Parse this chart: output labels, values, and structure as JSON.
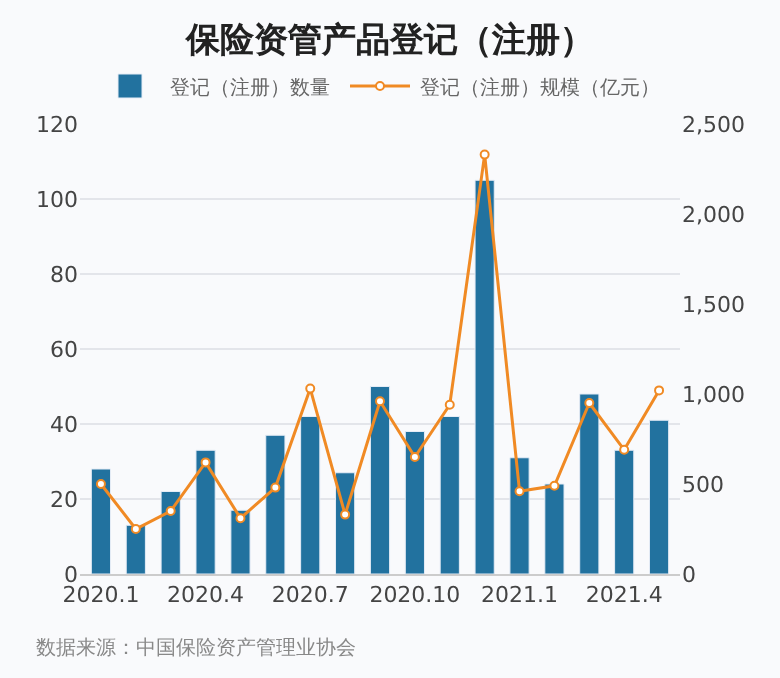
{
  "chart_data": {
    "type": "bar",
    "title": "保险资管产品登记（注册）",
    "categories": [
      "2020.1",
      null,
      null,
      "2020.4",
      null,
      null,
      "2020.7",
      null,
      null,
      "2020.10",
      null,
      null,
      "2021.1",
      null,
      null,
      "2021.4",
      null
    ],
    "series": [
      {
        "name": "登记（注册）数量",
        "color": "#22729f",
        "values": [
          28,
          13,
          22,
          33,
          17,
          37,
          42,
          27,
          50,
          38,
          42,
          105,
          31,
          24,
          48,
          33,
          41
        ]
      },
      {
        "name": "登记（注册）规模（亿元）",
        "color": "#f08a24",
        "type": "line",
        "axis": "y2",
        "marker": "circle",
        "values": [
          500,
          250,
          350,
          620,
          310,
          480,
          1030,
          330,
          960,
          650,
          940,
          2330,
          460,
          490,
          950,
          690,
          1020
        ]
      }
    ],
    "ylim": [
      0,
      120
    ],
    "yticks": [
      0,
      20,
      40,
      60,
      80,
      100,
      120
    ],
    "y2lim": [
      0,
      2500
    ],
    "y2ticks": [
      0,
      {
        "value": 500,
        "label": "500"
      },
      {
        "value": 1000,
        "label": "1,000"
      },
      {
        "value": 1500,
        "label": "1,500"
      },
      {
        "value": 2000,
        "label": "2,000"
      },
      {
        "value": 2500,
        "label": "2,500"
      }
    ],
    "grid": "y",
    "legend": "top",
    "annotations": [
      "数据来源：中国保险资产管理业协会"
    ]
  }
}
